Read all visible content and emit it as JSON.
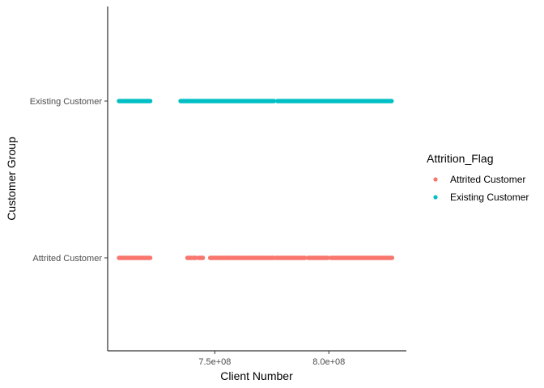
{
  "chart_data": {
    "type": "scatter",
    "xlabel": "Client Number",
    "ylabel": "Customer Group",
    "x_tick_labels": [
      "7.5e+08",
      "8.0e+08"
    ],
    "x_ticks": [
      750000000,
      800000000
    ],
    "xlim": [
      703000000,
      834000000
    ],
    "categories": [
      "Attrited Customer",
      "Existing Customer"
    ],
    "grid": false,
    "legend": {
      "title": "Attrition_Flag",
      "placement": "right",
      "entries": [
        "Attrited Customer",
        "Existing Customer"
      ]
    },
    "series": [
      {
        "name": "Attrited Customer",
        "color": "#F8766D",
        "category": "Attrited Customer",
        "x_ranges": [
          [
            708000000,
            722000000
          ],
          [
            738000000,
            740000000
          ],
          [
            740500000,
            742000000
          ],
          [
            743000000,
            745000000
          ],
          [
            748000000,
            756000000
          ],
          [
            756000000,
            776000000
          ],
          [
            777000000,
            790000000
          ],
          [
            791000000,
            800000000
          ],
          [
            801000000,
            828000000
          ]
        ]
      },
      {
        "name": "Existing Customer",
        "color": "#00BFC4",
        "category": "Existing Customer",
        "x_ranges": [
          [
            708000000,
            722000000
          ],
          [
            735000000,
            776000000
          ],
          [
            777500000,
            828000000
          ]
        ]
      }
    ]
  }
}
